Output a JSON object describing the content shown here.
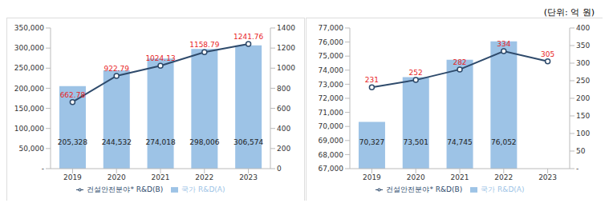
{
  "unit_note": "(단위: 억 원)",
  "chart_data": [
    {
      "type": "bar",
      "categories": [
        "2019",
        "2020",
        "2021",
        "2022",
        "2023"
      ],
      "series": [
        {
          "name": "국가 R&D(A)",
          "type": "bar",
          "color": "#9dc3e6",
          "values": [
            205328,
            244532,
            274018,
            298006,
            306574
          ],
          "data_labels": true,
          "value_labels": [
            "205,328",
            "244,532",
            "274,018",
            "298,006",
            "306,574"
          ]
        },
        {
          "name": "건설안전분야* R&D(B)",
          "type": "line",
          "axis": "y2",
          "color": "#2e4a6b",
          "marker": "circle",
          "values": [
            662.78,
            922.79,
            1024.13,
            1158.79,
            1241.76
          ],
          "data_labels": true
        }
      ],
      "ylim": [
        0,
        350000
      ],
      "yticks": [
        {
          "value": 0,
          "label": "-"
        },
        {
          "value": 50000,
          "label": "50,000"
        },
        {
          "value": 100000,
          "label": "100,000"
        },
        {
          "value": 150000,
          "label": "150,000"
        },
        {
          "value": 200000,
          "label": "200,000"
        },
        {
          "value": 250000,
          "label": "250,000"
        },
        {
          "value": 300000,
          "label": "300,000"
        },
        {
          "value": 350000,
          "label": "350,000"
        }
      ],
      "y2lim": [
        0,
        1400
      ],
      "y2ticks": [
        0,
        200,
        400,
        600,
        800,
        1000,
        1200,
        1400
      ],
      "legend": "bottom",
      "grid": false
    },
    {
      "type": "bar",
      "categories": [
        "2019",
        "2020",
        "2021",
        "2022",
        "2023"
      ],
      "series": [
        {
          "name": "국가 R&D(A)",
          "type": "bar",
          "color": "#9dc3e6",
          "values": [
            70327,
            73501,
            74745,
            76052,
            null
          ],
          "data_labels": true,
          "value_labels": [
            "70,327",
            "73,501",
            "74,745",
            "76,052",
            null
          ]
        },
        {
          "name": "건설안전분야* R&D(B)",
          "type": "line",
          "axis": "y2",
          "color": "#2e4a6b",
          "marker": "circle",
          "values": [
            231,
            252,
            282,
            334,
            305
          ],
          "data_labels": true
        }
      ],
      "ylim": [
        67000,
        77000
      ],
      "yticks": [
        {
          "value": 67000,
          "label": "67,000"
        },
        {
          "value": 68000,
          "label": "68,000"
        },
        {
          "value": 69000,
          "label": "69,000"
        },
        {
          "value": 70000,
          "label": "70,000"
        },
        {
          "value": 71000,
          "label": "71,000"
        },
        {
          "value": 72000,
          "label": "72,000"
        },
        {
          "value": 73000,
          "label": "73,000"
        },
        {
          "value": 74000,
          "label": "74,000"
        },
        {
          "value": 75000,
          "label": "75,000"
        },
        {
          "value": 76000,
          "label": "76,000"
        },
        {
          "value": 77000,
          "label": "77,000"
        }
      ],
      "y2lim": [
        0,
        400
      ],
      "y2ticks": [
        {
          "value": 0,
          "label": "-"
        },
        50,
        100,
        150,
        200,
        250,
        300,
        350,
        400
      ],
      "legend": "bottom",
      "grid": false
    }
  ]
}
